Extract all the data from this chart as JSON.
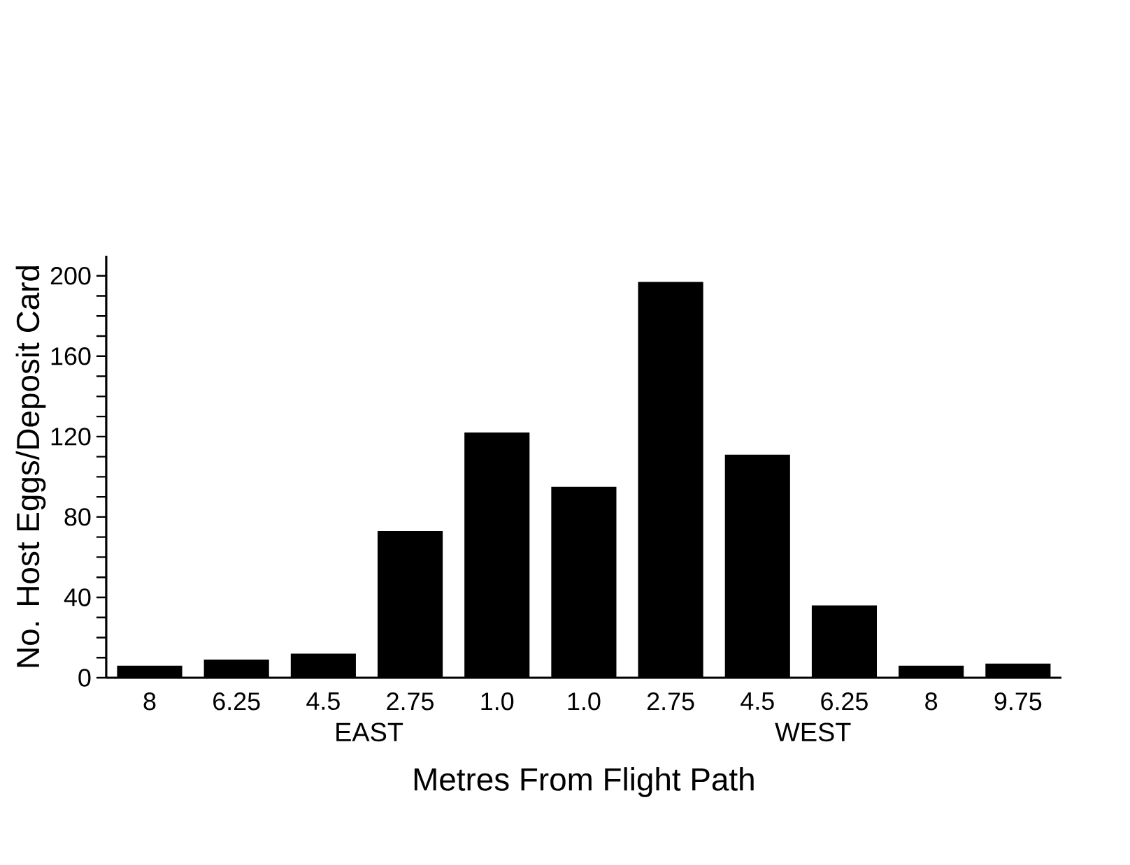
{
  "chart_data": {
    "type": "bar",
    "xlabel": "Metres From Flight Path",
    "ylabel": "No. Host Eggs/Deposit Card",
    "categories": [
      "8",
      "6.25",
      "4.5",
      "2.75",
      "1.0",
      "1.0",
      "2.75",
      "4.5",
      "6.25",
      "8",
      "9.75"
    ],
    "values": [
      6,
      9,
      12,
      73,
      122,
      95,
      197,
      111,
      36,
      6,
      7
    ],
    "color": "#000000",
    "ylim": [
      0,
      210
    ],
    "yticks": [
      0,
      {
        "value": 10,
        "label": null
      },
      {
        "value": 20,
        "label": null
      },
      {
        "value": 30,
        "label": null
      },
      40,
      {
        "value": 50,
        "label": null
      },
      {
        "value": 60,
        "label": null
      },
      {
        "value": 70,
        "label": null
      },
      80,
      {
        "value": 90,
        "label": null
      },
      {
        "value": 100,
        "label": null
      },
      {
        "value": 110,
        "label": null
      },
      120,
      {
        "value": 130,
        "label": null
      },
      {
        "value": 140,
        "label": null
      },
      {
        "value": 150,
        "label": null
      },
      160,
      {
        "value": 170,
        "label": null
      },
      {
        "value": 180,
        "label": null
      },
      {
        "value": 190,
        "label": null
      },
      200
    ],
    "annotations": [
      "EAST",
      "WEST"
    ]
  }
}
